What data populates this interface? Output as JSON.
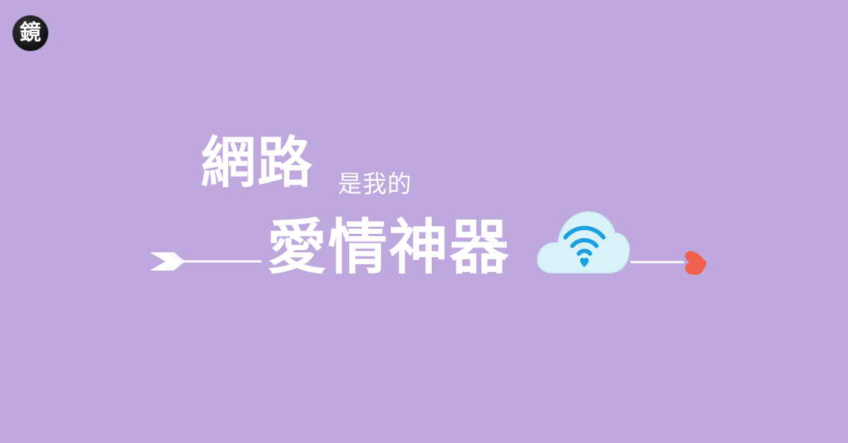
{
  "logo": {
    "glyph": "鏡",
    "icon": "mirror-media-logo-icon"
  },
  "headline": {
    "line1_big": "網路",
    "line1_small": "是我的",
    "line2_big": "愛情神器"
  },
  "decorations": {
    "arrow_tail_icon": "arrow-fletching-icon",
    "cloud_icon": "wifi-cloud-icon",
    "heart_icon": "heart-arrowhead-icon"
  },
  "colors": {
    "background": "#bfa8dd",
    "text": "#ffffff",
    "cloud": "#d8f2f8",
    "wifi": "#1aa0e0",
    "heart": "#f0604c"
  }
}
